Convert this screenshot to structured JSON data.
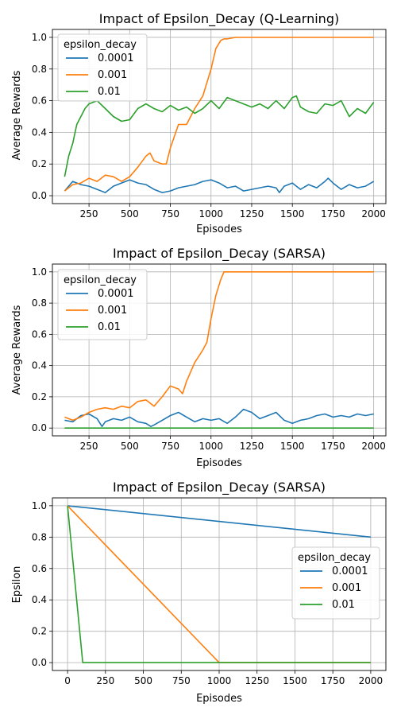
{
  "chart_data": [
    {
      "type": "line",
      "title": "Impact of Epsilon_Decay (Q-Learning)",
      "xlabel": "Episodes",
      "ylabel": "Average Rewards",
      "xlim": [
        25,
        2075
      ],
      "ylim": [
        -0.05,
        1.05
      ],
      "xticks": [
        250,
        500,
        750,
        1000,
        1250,
        1500,
        1750,
        2000
      ],
      "yticks": [
        0.0,
        0.2,
        0.4,
        0.6,
        0.8,
        1.0
      ],
      "grid": true,
      "legend_title": "epsilon_decay",
      "legend_position": "top-left",
      "series": [
        {
          "name": "0.0001",
          "color": "#1f77b4",
          "x": [
            100,
            150,
            200,
            250,
            300,
            350,
            400,
            450,
            500,
            550,
            600,
            650,
            700,
            750,
            800,
            850,
            900,
            950,
            1000,
            1050,
            1100,
            1150,
            1200,
            1250,
            1300,
            1350,
            1400,
            1420,
            1450,
            1500,
            1550,
            1600,
            1650,
            1700,
            1720,
            1750,
            1800,
            1850,
            1900,
            1950,
            2000
          ],
          "y": [
            0.03,
            0.09,
            0.07,
            0.06,
            0.04,
            0.02,
            0.06,
            0.08,
            0.1,
            0.08,
            0.07,
            0.04,
            0.02,
            0.03,
            0.05,
            0.06,
            0.07,
            0.09,
            0.1,
            0.08,
            0.05,
            0.06,
            0.03,
            0.04,
            0.05,
            0.06,
            0.05,
            0.02,
            0.06,
            0.08,
            0.04,
            0.07,
            0.05,
            0.09,
            0.11,
            0.08,
            0.04,
            0.07,
            0.05,
            0.06,
            0.09
          ]
        },
        {
          "name": "0.001",
          "color": "#ff7f0e",
          "x": [
            100,
            150,
            200,
            250,
            300,
            350,
            400,
            450,
            500,
            550,
            600,
            625,
            650,
            700,
            725,
            750,
            800,
            850,
            900,
            950,
            1000,
            1030,
            1060,
            1080,
            1100,
            1150,
            1200,
            1300,
            1400,
            1500,
            1600,
            1700,
            1800,
            1900,
            2000
          ],
          "y": [
            0.03,
            0.07,
            0.08,
            0.11,
            0.09,
            0.13,
            0.12,
            0.09,
            0.12,
            0.18,
            0.25,
            0.27,
            0.22,
            0.2,
            0.2,
            0.3,
            0.45,
            0.45,
            0.55,
            0.63,
            0.8,
            0.93,
            0.98,
            0.99,
            0.99,
            1.0,
            1.0,
            1.0,
            1.0,
            1.0,
            1.0,
            1.0,
            1.0,
            1.0,
            1.0
          ]
        },
        {
          "name": "0.01",
          "color": "#2ca02c",
          "x": [
            100,
            125,
            150,
            175,
            200,
            225,
            250,
            300,
            350,
            400,
            450,
            500,
            550,
            600,
            650,
            700,
            750,
            800,
            850,
            900,
            950,
            1000,
            1050,
            1100,
            1150,
            1200,
            1250,
            1300,
            1350,
            1400,
            1450,
            1500,
            1525,
            1550,
            1600,
            1650,
            1700,
            1750,
            1800,
            1850,
            1900,
            1950,
            2000
          ],
          "y": [
            0.12,
            0.25,
            0.33,
            0.45,
            0.5,
            0.55,
            0.58,
            0.6,
            0.55,
            0.5,
            0.47,
            0.48,
            0.55,
            0.58,
            0.55,
            0.53,
            0.57,
            0.54,
            0.56,
            0.52,
            0.55,
            0.6,
            0.55,
            0.62,
            0.6,
            0.58,
            0.56,
            0.58,
            0.55,
            0.6,
            0.55,
            0.62,
            0.63,
            0.56,
            0.53,
            0.52,
            0.58,
            0.57,
            0.6,
            0.5,
            0.55,
            0.52,
            0.59
          ]
        }
      ]
    },
    {
      "type": "line",
      "title": "Impact of Epsilon_Decay (SARSA)",
      "xlabel": "Episodes",
      "ylabel": "Average Rewards",
      "xlim": [
        25,
        2075
      ],
      "ylim": [
        -0.05,
        1.05
      ],
      "xticks": [
        250,
        500,
        750,
        1000,
        1250,
        1500,
        1750,
        2000
      ],
      "yticks": [
        0.0,
        0.2,
        0.4,
        0.6,
        0.8,
        1.0
      ],
      "grid": true,
      "legend_title": "epsilon_decay",
      "legend_position": "top-left",
      "series": [
        {
          "name": "0.0001",
          "color": "#1f77b4",
          "x": [
            100,
            150,
            200,
            250,
            300,
            330,
            350,
            400,
            450,
            500,
            550,
            600,
            630,
            650,
            700,
            750,
            800,
            850,
            900,
            950,
            1000,
            1050,
            1100,
            1150,
            1200,
            1250,
            1300,
            1350,
            1400,
            1450,
            1500,
            1550,
            1600,
            1650,
            1700,
            1750,
            1800,
            1850,
            1900,
            1950,
            2000
          ],
          "y": [
            0.05,
            0.04,
            0.08,
            0.09,
            0.06,
            0.01,
            0.04,
            0.06,
            0.05,
            0.07,
            0.04,
            0.03,
            0.01,
            0.02,
            0.05,
            0.08,
            0.1,
            0.07,
            0.04,
            0.06,
            0.05,
            0.06,
            0.03,
            0.07,
            0.12,
            0.1,
            0.06,
            0.08,
            0.1,
            0.05,
            0.03,
            0.05,
            0.06,
            0.08,
            0.09,
            0.07,
            0.08,
            0.07,
            0.09,
            0.08,
            0.09
          ]
        },
        {
          "name": "0.001",
          "color": "#ff7f0e",
          "x": [
            100,
            150,
            200,
            250,
            300,
            350,
            400,
            450,
            500,
            550,
            600,
            650,
            700,
            750,
            800,
            825,
            850,
            900,
            950,
            975,
            1000,
            1030,
            1060,
            1080,
            1100,
            1200,
            1300,
            1400,
            1500,
            1600,
            1700,
            1800,
            1900,
            2000
          ],
          "y": [
            0.07,
            0.05,
            0.07,
            0.1,
            0.12,
            0.13,
            0.12,
            0.14,
            0.13,
            0.17,
            0.18,
            0.14,
            0.2,
            0.27,
            0.25,
            0.22,
            0.3,
            0.42,
            0.5,
            0.55,
            0.7,
            0.85,
            0.95,
            1.0,
            1.0,
            1.0,
            1.0,
            1.0,
            1.0,
            1.0,
            1.0,
            1.0,
            1.0,
            1.0
          ]
        },
        {
          "name": "0.01",
          "color": "#2ca02c",
          "x": [
            100,
            2000
          ],
          "y": [
            0.0,
            0.0
          ]
        }
      ]
    },
    {
      "type": "line",
      "title": "Impact of Epsilon_Decay (SARSA)",
      "xlabel": "Episodes",
      "ylabel": "Epsilon",
      "xlim": [
        -100,
        2100
      ],
      "ylim": [
        -0.05,
        1.05
      ],
      "xticks": [
        0,
        250,
        500,
        750,
        1000,
        1250,
        1500,
        1750,
        2000
      ],
      "yticks": [
        0.0,
        0.2,
        0.4,
        0.6,
        0.8,
        1.0
      ],
      "grid": true,
      "legend_title": "epsilon_decay",
      "legend_position": "center-right",
      "series": [
        {
          "name": "0.0001",
          "color": "#1f77b4",
          "x": [
            0,
            2000
          ],
          "y": [
            1.0,
            0.8
          ]
        },
        {
          "name": "0.001",
          "color": "#ff7f0e",
          "x": [
            0,
            1000,
            2000
          ],
          "y": [
            1.0,
            0.0,
            0.0
          ]
        },
        {
          "name": "0.01",
          "color": "#2ca02c",
          "x": [
            0,
            100,
            2000
          ],
          "y": [
            1.0,
            0.0,
            0.0
          ]
        }
      ]
    }
  ]
}
